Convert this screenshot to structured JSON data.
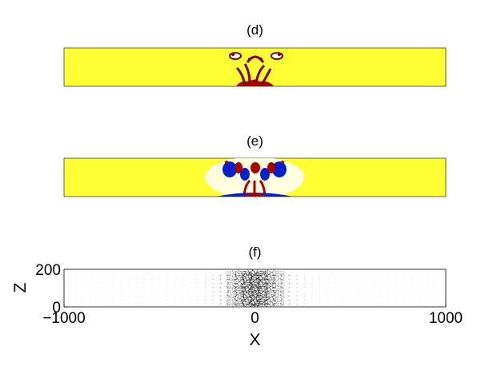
{
  "chart_data": [
    {
      "type": "heatmap",
      "title": "(d)",
      "colors": {
        "background": "#ffff33",
        "positive": "#aa0000",
        "negative": "#0022cc",
        "neutral": "#ffffff"
      }
    },
    {
      "type": "heatmap",
      "title": "(e)",
      "colors": {
        "background": "#ffff33",
        "positive": "#aa0000",
        "negative": "#0022cc",
        "neutral": "#ffffff"
      }
    },
    {
      "type": "scatter",
      "title": "(f)",
      "xlabel": "X",
      "ylabel": "Z",
      "xlim": [
        -1000,
        1000
      ],
      "ylim": [
        0,
        200
      ],
      "xticks": [
        -1000,
        0,
        1000
      ],
      "xtick_labels": [
        "−1000",
        "0",
        "1000"
      ],
      "yticks": [
        0,
        200
      ],
      "ytick_labels": [
        "0",
        "200"
      ],
      "grid": false,
      "colors": {
        "vectors": "#222222"
      }
    }
  ]
}
